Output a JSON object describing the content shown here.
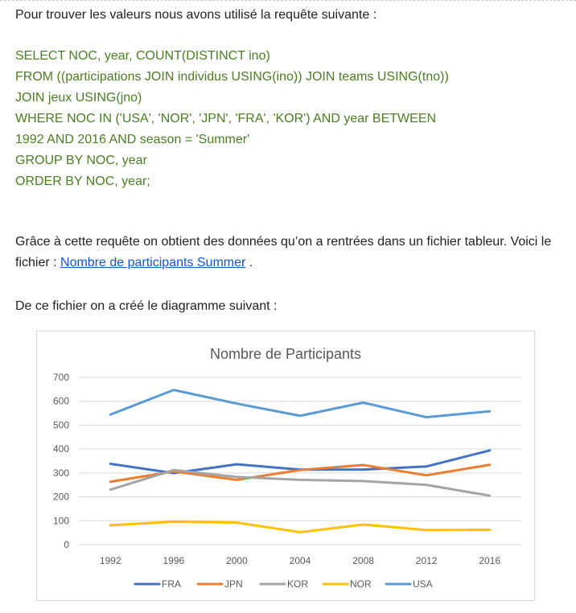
{
  "intro": "Pour trouver les valeurs nous avons utilisé la requête suivante :",
  "sql": [
    "SELECT NOC, year, COUNT(DISTINCT ino)",
    "FROM ((participations JOIN individus USING(ino)) JOIN teams USING(tno))",
    "JOIN jeux USING(jno)",
    "WHERE NOC IN ('USA', 'NOR', 'JPN', 'FRA', 'KOR') AND year BETWEEN",
    "1992 AND 2016 AND season = 'Summer'",
    "GROUP BY NOC, year",
    "ORDER BY NOC, year;"
  ],
  "description": {
    "text_before": "Grâce à cette requête on obtient des données qu’on a rentrées dans un fichier tableur. Voici le fichier : ",
    "link_text": "Nombre de participants Summer",
    "text_after": " ."
  },
  "chart_lead": "De ce fichier on a créé le diagramme suivant :",
  "chart_data": {
    "type": "line",
    "title": "Nombre de Participants",
    "x": [
      1992,
      1996,
      2000,
      2004,
      2008,
      2012,
      2016
    ],
    "categories": [
      "1992",
      "1996",
      "2000",
      "2004",
      "2008",
      "2012",
      "2016"
    ],
    "ylim": [
      0,
      700
    ],
    "yticks": [
      0,
      100,
      200,
      300,
      400,
      500,
      600,
      700
    ],
    "grid": true,
    "legend_position": "bottom",
    "series": [
      {
        "name": "FRA",
        "color": "#4472c4",
        "values": [
          338,
          299,
          336,
          314,
          314,
          327,
          394
        ]
      },
      {
        "name": "JPN",
        "color": "#ed7d31",
        "values": [
          263,
          306,
          271,
          312,
          333,
          290,
          334
        ]
      },
      {
        "name": "KOR",
        "color": "#a5a5a5",
        "values": [
          230,
          312,
          283,
          271,
          266,
          250,
          205
        ]
      },
      {
        "name": "NOR",
        "color": "#ffc000",
        "values": [
          81,
          96,
          92,
          52,
          84,
          61,
          62
        ]
      },
      {
        "name": "USA",
        "color": "#5b9bd5",
        "values": [
          544,
          647,
          590,
          539,
          594,
          533,
          558
        ]
      }
    ]
  }
}
